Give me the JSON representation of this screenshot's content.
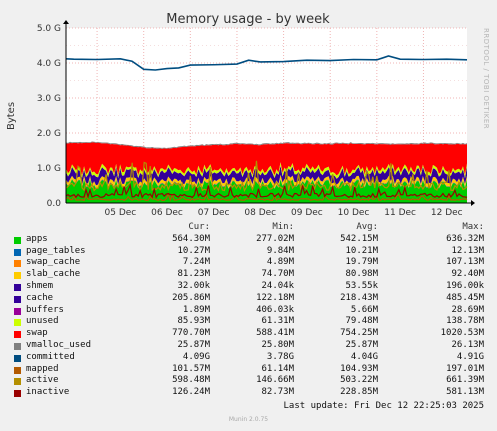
{
  "chart_data": {
    "type": "area",
    "title": "Memory usage - by week",
    "ylabel": "Bytes",
    "ylim": [
      0,
      5000000000
    ],
    "yticks": [
      0,
      1000000000,
      2000000000,
      3000000000,
      4000000000,
      5000000000
    ],
    "ytick_labels": [
      "0.0",
      "1.0 G",
      "2.0 G",
      "3.0 G",
      "4.0 G",
      "5.0 G"
    ],
    "xlim": [
      "2025-12-04T08:00",
      "2025-12-12T22:25"
    ],
    "xticks": [
      "2025-12-05",
      "2025-12-06",
      "2025-12-07",
      "2025-12-08",
      "2025-12-09",
      "2025-12-10",
      "2025-12-11",
      "2025-12-12"
    ],
    "xtick_labels": [
      "05 Dec",
      "06 Dec",
      "07 Dec",
      "08 Dec",
      "09 Dec",
      "10 Dec",
      "11 Dec",
      "12 Dec"
    ],
    "grid": true,
    "series": [
      {
        "name": "apps",
        "color": "#00cc00",
        "cur": "564.30M",
        "min": "277.02M",
        "avg": "542.15M",
        "max": "636.32M",
        "cur_value": 564300000,
        "avg_value": 542150000
      },
      {
        "name": "page_tables",
        "color": "#0066b3",
        "cur": "10.27M",
        "min": "9.84M",
        "avg": "10.21M",
        "max": "12.13M",
        "cur_value": 10270000,
        "avg_value": 10210000
      },
      {
        "name": "swap_cache",
        "color": "#ff8000",
        "cur": "7.24M",
        "min": "4.89M",
        "avg": "19.79M",
        "max": "107.13M",
        "cur_value": 7240000,
        "avg_value": 19790000
      },
      {
        "name": "slab_cache",
        "color": "#ffcc00",
        "cur": "81.23M",
        "min": "74.70M",
        "avg": "80.98M",
        "max": "92.40M",
        "cur_value": 81230000,
        "avg_value": 80980000
      },
      {
        "name": "shmem",
        "color": "#330099",
        "cur": "32.00k",
        "min": "24.04k",
        "avg": "53.55k",
        "max": "196.00k",
        "cur_value": 32000,
        "avg_value": 53550
      },
      {
        "name": "cache",
        "color": "#330099",
        "cur": "205.86M",
        "min": "122.18M",
        "avg": "218.43M",
        "max": "485.45M",
        "cur_value": 205860000,
        "avg_value": 218430000
      },
      {
        "name": "buffers",
        "color": "#990099",
        "cur": "1.89M",
        "min": "406.03k",
        "avg": "5.66M",
        "max": "28.69M",
        "cur_value": 1890000,
        "avg_value": 5660000
      },
      {
        "name": "unused",
        "color": "#ccff00",
        "cur": "85.93M",
        "min": "61.31M",
        "avg": "79.48M",
        "max": "138.78M",
        "cur_value": 85930000,
        "avg_value": 79480000
      },
      {
        "name": "swap",
        "color": "#ff0000",
        "cur": "770.70M",
        "min": "588.41M",
        "avg": "754.25M",
        "max": "1020.53M",
        "cur_value": 770700000,
        "avg_value": 754250000
      },
      {
        "name": "vmalloc_used",
        "color": "#808080",
        "cur": "25.87M",
        "min": "25.80M",
        "avg": "25.87M",
        "max": "26.13M",
        "cur_value": 25870000,
        "avg_value": 25870000
      },
      {
        "name": "committed",
        "color": "#004d80",
        "cur": "4.09G",
        "min": "3.78G",
        "avg": "4.04G",
        "max": "4.91G",
        "cur_value": 4090000000,
        "avg_value": 4040000000
      },
      {
        "name": "mapped",
        "color": "#b35a00",
        "cur": "101.57M",
        "min": "61.14M",
        "avg": "104.93M",
        "max": "197.01M",
        "cur_value": 101570000,
        "avg_value": 104930000
      },
      {
        "name": "active",
        "color": "#b38f00",
        "cur": "598.48M",
        "min": "146.66M",
        "avg": "503.22M",
        "max": "661.39M",
        "cur_value": 598480000,
        "avg_value": 503220000
      },
      {
        "name": "inactive",
        "color": "#990000",
        "cur": "126.24M",
        "min": "82.73M",
        "avg": "228.85M",
        "max": "581.13M",
        "cur_value": 126240000,
        "avg_value": 228850000
      }
    ],
    "committed_line": {
      "x": [
        "2025-12-04T08:00",
        "2025-12-04T12:00",
        "2025-12-05T00:00",
        "2025-12-05T12:00",
        "2025-12-05T18:00",
        "2025-12-06T00:00",
        "2025-12-06T06:00",
        "2025-12-06T12:00",
        "2025-12-06T18:00",
        "2025-12-07T00:00",
        "2025-12-07T12:00",
        "2025-12-08T00:00",
        "2025-12-08T06:00",
        "2025-12-08T12:00",
        "2025-12-09T00:00",
        "2025-12-09T12:00",
        "2025-12-10T00:00",
        "2025-12-10T12:00",
        "2025-12-11T00:00",
        "2025-12-11T06:00",
        "2025-12-11T12:00",
        "2025-12-12T00:00",
        "2025-12-12T12:00",
        "2025-12-12T22:25"
      ],
      "y": [
        4.12,
        4.11,
        4.1,
        4.12,
        4.05,
        3.82,
        3.8,
        3.84,
        3.86,
        3.94,
        3.95,
        3.97,
        4.08,
        4.03,
        4.04,
        4.08,
        4.07,
        4.1,
        4.09,
        4.2,
        4.11,
        4.1,
        4.11,
        4.09
      ]
    },
    "stack_totals_avg": {
      "x": [
        "2025-12-04T08:00",
        "2025-12-05T00:00",
        "2025-12-05T12:00",
        "2025-12-06T00:00",
        "2025-12-06T12:00",
        "2025-12-07T00:00",
        "2025-12-07T12:00",
        "2025-12-08T00:00",
        "2025-12-08T12:00",
        "2025-12-09T00:00",
        "2025-12-09T12:00",
        "2025-12-10T00:00",
        "2025-12-10T12:00",
        "2025-12-11T00:00",
        "2025-12-11T12:00",
        "2025-12-12T00:00",
        "2025-12-12T22:25"
      ],
      "y": [
        1.7,
        1.72,
        1.66,
        1.58,
        1.55,
        1.62,
        1.65,
        1.68,
        1.66,
        1.7,
        1.69,
        1.68,
        1.7,
        1.68,
        1.67,
        1.69,
        1.68
      ]
    }
  },
  "legend": {
    "headers": {
      "cur": "Cur:",
      "min": "Min:",
      "avg": "Avg:",
      "max": "Max:"
    }
  },
  "watermark": "RRDTOOL / TOBI OETIKER",
  "last_update": "Last update: Fri Dec 12 22:25:03 2025",
  "munin_version": "Munin 2.0.75"
}
